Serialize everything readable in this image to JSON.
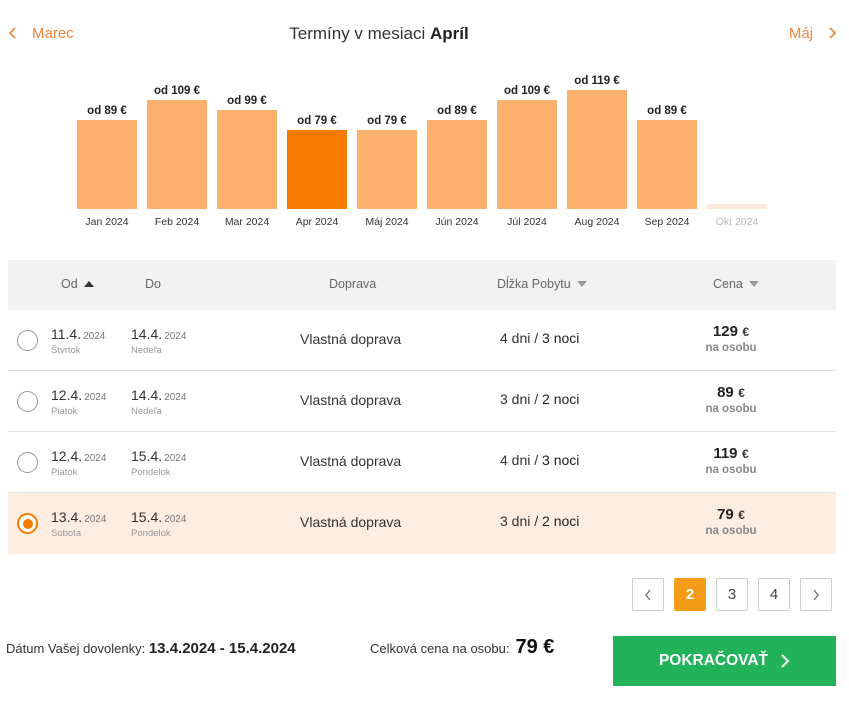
{
  "header": {
    "prev_label": "Marec",
    "next_label": "Máj",
    "title_prefix": "Termíny v mesiaci",
    "title_month": "Apríl"
  },
  "colors": {
    "accent": "#f57c00",
    "bar": "#fcb06e",
    "bar_selected": "#f57c00",
    "bar_disabled": "#fde8da",
    "button": "#21b25a"
  },
  "chart_data": {
    "type": "bar",
    "title": "",
    "xlabel": "",
    "ylabel": "",
    "unit": "€",
    "ylim": [
      0,
      119
    ],
    "categories": [
      "Jan 2024",
      "Feb 2024",
      "Mar 2024",
      "Apr 2024",
      "Máj 2024",
      "Jún 2024",
      "Júl 2024",
      "Aug 2024",
      "Sep 2024",
      "Okt 2024"
    ],
    "values": [
      89,
      109,
      99,
      79,
      79,
      89,
      109,
      119,
      89,
      null
    ],
    "labels": [
      "od 89 €",
      "od 109 €",
      "od 99 €",
      "od 79 €",
      "od 79 €",
      "od 89 €",
      "od 109 €",
      "od 119 €",
      "od 89 €",
      ""
    ],
    "selected": "Apr 2024",
    "disabled": [
      "Okt 2024"
    ]
  },
  "table": {
    "headers": {
      "from": "Od",
      "to": "Do",
      "transport": "Doprava",
      "stay": "Dĺžka Pobytu",
      "price": "Cena"
    },
    "rows": [
      {
        "from_date": "11.4.",
        "from_year": "2024",
        "from_day": "Štvrtok",
        "to_date": "14.4.",
        "to_year": "2024",
        "to_day": "Nedeľa",
        "transport": "Vlastná doprava",
        "days": "4 dni",
        "sep": "/",
        "nights": "3 noci",
        "price": "129",
        "currency": "€",
        "per_person": "na osobu",
        "selected": false
      },
      {
        "from_date": "12.4.",
        "from_year": "2024",
        "from_day": "Piatok",
        "to_date": "14.4.",
        "to_year": "2024",
        "to_day": "Nedeľa",
        "transport": "Vlastná doprava",
        "days": "3 dni",
        "sep": "/",
        "nights": "2 noci",
        "price": "89",
        "currency": "€",
        "per_person": "na osobu",
        "selected": false
      },
      {
        "from_date": "12.4.",
        "from_year": "2024",
        "from_day": "Piatok",
        "to_date": "15.4.",
        "to_year": "2024",
        "to_day": "Pondelok",
        "transport": "Vlastná doprava",
        "days": "4 dni",
        "sep": "/",
        "nights": "3 noci",
        "price": "119",
        "currency": "€",
        "per_person": "na osobu",
        "selected": false
      },
      {
        "from_date": "13.4.",
        "from_year": "2024",
        "from_day": "Sobota",
        "to_date": "15.4.",
        "to_year": "2024",
        "to_day": "Pondelok",
        "transport": "Vlastná doprava",
        "days": "3 dni",
        "sep": "/",
        "nights": "2 noci",
        "price": "79",
        "currency": "€",
        "per_person": "na osobu",
        "selected": true
      }
    ]
  },
  "pagination": {
    "pages": [
      "2",
      "3",
      "4"
    ],
    "current": "2",
    "prev_icon": "chevron-left-icon",
    "next_icon": "chevron-right-icon"
  },
  "footer": {
    "dates_label": "Dátum Vašej dovolenky:",
    "dates_value": "13.4.2024 - 15.4.2024",
    "total_label": "Celková cena na osobu:",
    "total_value": "79 €",
    "continue_label": "POKRAČOVAŤ"
  }
}
